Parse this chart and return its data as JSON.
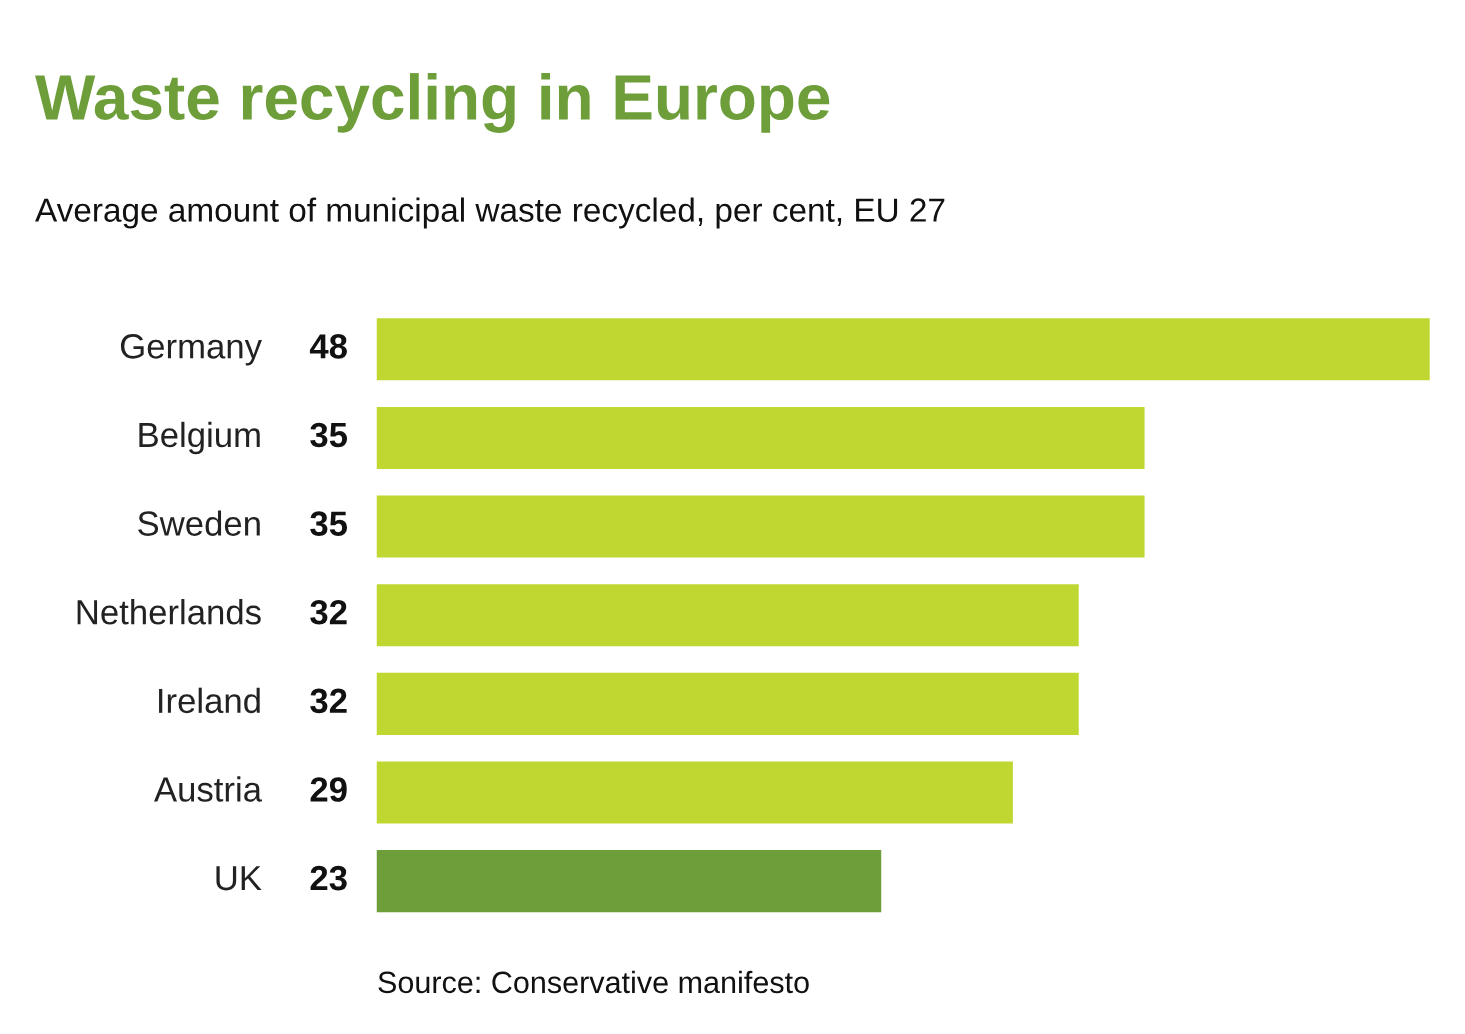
{
  "chart_data": {
    "type": "bar",
    "orientation": "horizontal",
    "title": "Waste recycling in Europe",
    "subtitle": "Average amount of municipal waste recycled, per cent, EU 27",
    "categories": [
      "Germany",
      "Belgium",
      "Sweden",
      "Netherlands",
      "Ireland",
      "Austria",
      "UK"
    ],
    "values": [
      48,
      35,
      35,
      32,
      32,
      29,
      23
    ],
    "colors": [
      "#bfd730",
      "#bfd730",
      "#bfd730",
      "#bfd730",
      "#bfd730",
      "#bfd730",
      "#6e9e3a"
    ],
    "data_labels": true,
    "annotations": [
      "Source: Conservative manifesto"
    ]
  }
}
